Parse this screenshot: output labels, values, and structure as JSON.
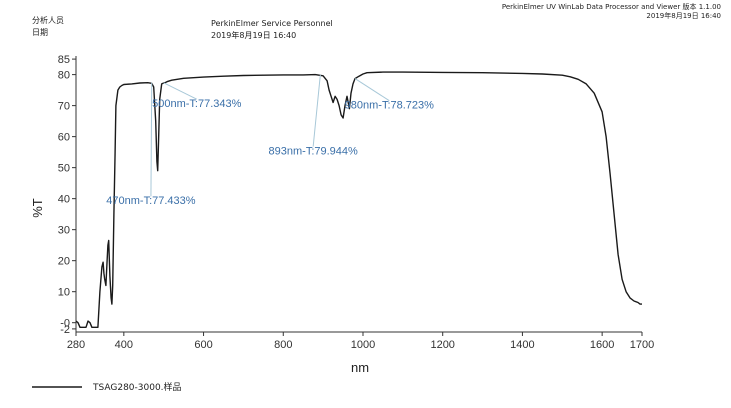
{
  "header": {
    "analyst_label": "分析人员",
    "date_label": "日期",
    "analyst": "PerkinElmer Service Personnel",
    "datetime": "2019年8月19日 16:40",
    "software": "PerkinElmer UV WinLab Data Processor and Viewer 版本 1.1.00",
    "software_date": "2019年8月19日 16:40"
  },
  "chart_data": {
    "type": "line",
    "xlabel": "nm",
    "ylabel": "%T",
    "xlim": [
      280,
      1700
    ],
    "ylim": [
      -3,
      86
    ],
    "x_ticks": [
      280,
      400,
      600,
      800,
      1000,
      1200,
      1400,
      1600,
      1700
    ],
    "y_ticks": [
      -2,
      0,
      10,
      20,
      30,
      40,
      50,
      60,
      70,
      80,
      85
    ],
    "y_tick_labels": [
      "-2",
      "-0",
      "10",
      "20",
      "30",
      "40",
      "50",
      "60",
      "70",
      "80",
      "85"
    ],
    "grid": false,
    "legend_position": "bottom-left",
    "series": [
      {
        "name": "TSAG280-3000.样品",
        "color": "#1a1a1a",
        "x": [
          280,
          285,
          290,
          300,
          305,
          310,
          315,
          320,
          323,
          326,
          330,
          335,
          340,
          345,
          348,
          350,
          352,
          355,
          358,
          360,
          362,
          365,
          368,
          370,
          372,
          375,
          378,
          380,
          385,
          390,
          395,
          400,
          420,
          440,
          460,
          470,
          475,
          480,
          483,
          485,
          487,
          490,
          495,
          500,
          505,
          510,
          520,
          550,
          600,
          650,
          700,
          750,
          800,
          850,
          880,
          900,
          910,
          915,
          920,
          925,
          930,
          935,
          940,
          945,
          950,
          955,
          960,
          963,
          966,
          970,
          975,
          980,
          990,
          1000,
          1010,
          1050,
          1100,
          1200,
          1300,
          1400,
          1450,
          1500,
          1520,
          1540,
          1560,
          1580,
          1600,
          1610,
          1620,
          1630,
          1640,
          1650,
          1660,
          1670,
          1680,
          1690,
          1695,
          1700
        ],
        "values": [
          0.5,
          0,
          -1.5,
          -1.5,
          -1.5,
          0.5,
          0,
          -1.5,
          -1.5,
          -1.5,
          -1.5,
          -1.5,
          10,
          18,
          19.5,
          16,
          14,
          12,
          20,
          25,
          26.5,
          15,
          8,
          6,
          12,
          35,
          55,
          70,
          75,
          76,
          76.5,
          76.8,
          77,
          77.3,
          77.4,
          77.2,
          76,
          65,
          52,
          49,
          58,
          72,
          77,
          77.3,
          77.5,
          77.8,
          78.2,
          78.8,
          79.2,
          79.5,
          79.7,
          79.8,
          79.9,
          79.9,
          80,
          79.6,
          78,
          75,
          73,
          71,
          73,
          72,
          70,
          67,
          66,
          70,
          73,
          71,
          69,
          74,
          77,
          78.7,
          79.5,
          80.2,
          80.6,
          80.8,
          80.8,
          80.7,
          80.6,
          80.4,
          80.2,
          79.8,
          79.3,
          78.5,
          77,
          74,
          68,
          60,
          48,
          35,
          22,
          14,
          10,
          8,
          7,
          6.5,
          6,
          6
        ]
      }
    ],
    "annotations": [
      {
        "text": "470nm-T:77.433%",
        "x": 470,
        "y": 77.433,
        "label_x": 468,
        "label_y": 39.5
      },
      {
        "text": "500nm-T:77.343%",
        "x": 500,
        "y": 77.343,
        "label_x": 583,
        "label_y": 70.8
      },
      {
        "text": "893nm-T:79.944%",
        "x": 893,
        "y": 79.944,
        "label_x": 875,
        "label_y": 55.5
      },
      {
        "text": "980nm-T:78.723%",
        "x": 980,
        "y": 78.723,
        "label_x": 1066,
        "label_y": 70.3
      }
    ]
  }
}
